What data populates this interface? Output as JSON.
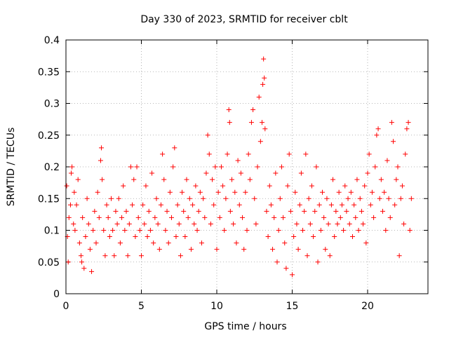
{
  "chart_data": {
    "type": "scatter",
    "title": "Day 330 of 2023, SRMTID for receiver cblt",
    "xlabel": "GPS time / hours",
    "ylabel": "SRMTID / TECUs",
    "xlim": [
      0,
      24
    ],
    "ylim": [
      0,
      0.4
    ],
    "x_ticks": [
      0,
      5,
      10,
      15,
      20
    ],
    "x_tick_labels": [
      "0",
      "5",
      "10",
      "15",
      "20"
    ],
    "y_ticks": [
      0,
      0.05,
      0.1,
      0.15,
      0.2,
      0.25,
      0.3,
      0.35,
      0.4
    ],
    "y_tick_labels": [
      "0",
      "0.05",
      "0.1",
      "0.15",
      "0.2",
      "0.25",
      "0.3",
      "0.35",
      "0.4"
    ],
    "grid": true,
    "marker": "+",
    "color": "#ff0000",
    "series": [
      {
        "name": "SRMTID",
        "points": [
          [
            0.05,
            0.17
          ],
          [
            0.1,
            0.09
          ],
          [
            0.15,
            0.05
          ],
          [
            0.2,
            0.12
          ],
          [
            0.3,
            0.14
          ],
          [
            0.35,
            0.19
          ],
          [
            0.4,
            0.2
          ],
          [
            0.5,
            0.11
          ],
          [
            0.55,
            0.16
          ],
          [
            0.6,
            0.1
          ],
          [
            0.7,
            0.14
          ],
          [
            0.8,
            0.18
          ],
          [
            0.9,
            0.08
          ],
          [
            1.0,
            0.06
          ],
          [
            1.05,
            0.05
          ],
          [
            1.1,
            0.12
          ],
          [
            1.2,
            0.04
          ],
          [
            1.3,
            0.09
          ],
          [
            1.4,
            0.15
          ],
          [
            1.5,
            0.11
          ],
          [
            1.6,
            0.07
          ],
          [
            1.7,
            0.035
          ],
          [
            1.8,
            0.1
          ],
          [
            1.9,
            0.13
          ],
          [
            2.0,
            0.08
          ],
          [
            2.1,
            0.16
          ],
          [
            2.2,
            0.12
          ],
          [
            2.3,
            0.21
          ],
          [
            2.35,
            0.23
          ],
          [
            2.4,
            0.18
          ],
          [
            2.5,
            0.1
          ],
          [
            2.6,
            0.06
          ],
          [
            2.7,
            0.14
          ],
          [
            2.8,
            0.12
          ],
          [
            2.9,
            0.09
          ],
          [
            3.0,
            0.15
          ],
          [
            3.1,
            0.1
          ],
          [
            3.2,
            0.06
          ],
          [
            3.3,
            0.13
          ],
          [
            3.4,
            0.11
          ],
          [
            3.5,
            0.15
          ],
          [
            3.6,
            0.08
          ],
          [
            3.7,
            0.12
          ],
          [
            3.8,
            0.17
          ],
          [
            3.9,
            0.1
          ],
          [
            4.0,
            0.13
          ],
          [
            4.1,
            0.06
          ],
          [
            4.2,
            0.11
          ],
          [
            4.3,
            0.2
          ],
          [
            4.4,
            0.14
          ],
          [
            4.5,
            0.18
          ],
          [
            4.6,
            0.09
          ],
          [
            4.7,
            0.2
          ],
          [
            4.8,
            0.12
          ],
          [
            4.9,
            0.1
          ],
          [
            5.0,
            0.06
          ],
          [
            5.1,
            0.14
          ],
          [
            5.2,
            0.11
          ],
          [
            5.3,
            0.17
          ],
          [
            5.4,
            0.09
          ],
          [
            5.5,
            0.13
          ],
          [
            5.6,
            0.1
          ],
          [
            5.7,
            0.19
          ],
          [
            5.8,
            0.08
          ],
          [
            5.9,
            0.12
          ],
          [
            6.0,
            0.15
          ],
          [
            6.1,
            0.11
          ],
          [
            6.2,
            0.07
          ],
          [
            6.3,
            0.14
          ],
          [
            6.4,
            0.22
          ],
          [
            6.5,
            0.18
          ],
          [
            6.6,
            0.1
          ],
          [
            6.7,
            0.13
          ],
          [
            6.8,
            0.08
          ],
          [
            6.9,
            0.16
          ],
          [
            7.0,
            0.12
          ],
          [
            7.1,
            0.2
          ],
          [
            7.2,
            0.23
          ],
          [
            7.3,
            0.09
          ],
          [
            7.4,
            0.14
          ],
          [
            7.5,
            0.11
          ],
          [
            7.6,
            0.06
          ],
          [
            7.7,
            0.16
          ],
          [
            7.8,
            0.13
          ],
          [
            7.9,
            0.09
          ],
          [
            8.0,
            0.18
          ],
          [
            8.1,
            0.12
          ],
          [
            8.2,
            0.15
          ],
          [
            8.3,
            0.07
          ],
          [
            8.4,
            0.14
          ],
          [
            8.5,
            0.11
          ],
          [
            8.6,
            0.17
          ],
          [
            8.7,
            0.1
          ],
          [
            8.8,
            0.13
          ],
          [
            8.9,
            0.16
          ],
          [
            9.0,
            0.08
          ],
          [
            9.1,
            0.15
          ],
          [
            9.2,
            0.12
          ],
          [
            9.3,
            0.19
          ],
          [
            9.4,
            0.25
          ],
          [
            9.5,
            0.22
          ],
          [
            9.6,
            0.11
          ],
          [
            9.7,
            0.18
          ],
          [
            9.8,
            0.14
          ],
          [
            9.9,
            0.2
          ],
          [
            10.0,
            0.07
          ],
          [
            10.1,
            0.16
          ],
          [
            10.2,
            0.12
          ],
          [
            10.3,
            0.2
          ],
          [
            10.4,
            0.17
          ],
          [
            10.5,
            0.1
          ],
          [
            10.6,
            0.15
          ],
          [
            10.7,
            0.22
          ],
          [
            10.8,
            0.29
          ],
          [
            10.85,
            0.27
          ],
          [
            10.9,
            0.13
          ],
          [
            11.0,
            0.18
          ],
          [
            11.1,
            0.11
          ],
          [
            11.2,
            0.16
          ],
          [
            11.3,
            0.08
          ],
          [
            11.4,
            0.21
          ],
          [
            11.5,
            0.14
          ],
          [
            11.6,
            0.19
          ],
          [
            11.7,
            0.12
          ],
          [
            11.8,
            0.07
          ],
          [
            11.9,
            0.16
          ],
          [
            12.0,
            0.1
          ],
          [
            12.1,
            0.22
          ],
          [
            12.2,
            0.18
          ],
          [
            12.3,
            0.27
          ],
          [
            12.4,
            0.29
          ],
          [
            12.5,
            0.15
          ],
          [
            12.6,
            0.11
          ],
          [
            12.7,
            0.2
          ],
          [
            12.8,
            0.31
          ],
          [
            12.9,
            0.24
          ],
          [
            13.0,
            0.27
          ],
          [
            13.05,
            0.33
          ],
          [
            13.1,
            0.37
          ],
          [
            13.15,
            0.34
          ],
          [
            13.2,
            0.26
          ],
          [
            13.3,
            0.13
          ],
          [
            13.4,
            0.09
          ],
          [
            13.5,
            0.17
          ],
          [
            13.6,
            0.14
          ],
          [
            13.7,
            0.07
          ],
          [
            13.8,
            0.12
          ],
          [
            13.9,
            0.19
          ],
          [
            14.0,
            0.05
          ],
          [
            14.1,
            0.1
          ],
          [
            14.2,
            0.15
          ],
          [
            14.3,
            0.2
          ],
          [
            14.4,
            0.12
          ],
          [
            14.5,
            0.08
          ],
          [
            14.6,
            0.04
          ],
          [
            14.7,
            0.17
          ],
          [
            14.8,
            0.22
          ],
          [
            14.9,
            0.13
          ],
          [
            15.0,
            0.03
          ],
          [
            15.1,
            0.09
          ],
          [
            15.2,
            0.16
          ],
          [
            15.3,
            0.11
          ],
          [
            15.4,
            0.07
          ],
          [
            15.5,
            0.14
          ],
          [
            15.6,
            0.19
          ],
          [
            15.7,
            0.1
          ],
          [
            15.8,
            0.13
          ],
          [
            15.9,
            0.22
          ],
          [
            16.0,
            0.06
          ],
          [
            16.1,
            0.15
          ],
          [
            16.2,
            0.11
          ],
          [
            16.3,
            0.17
          ],
          [
            16.4,
            0.09
          ],
          [
            16.5,
            0.13
          ],
          [
            16.6,
            0.2
          ],
          [
            16.7,
            0.05
          ],
          [
            16.8,
            0.14
          ],
          [
            16.9,
            0.1
          ],
          [
            17.0,
            0.16
          ],
          [
            17.1,
            0.12
          ],
          [
            17.2,
            0.07
          ],
          [
            17.3,
            0.15
          ],
          [
            17.4,
            0.11
          ],
          [
            17.5,
            0.06
          ],
          [
            17.6,
            0.14
          ],
          [
            17.7,
            0.18
          ],
          [
            17.8,
            0.09
          ],
          [
            17.9,
            0.13
          ],
          [
            18.0,
            0.11
          ],
          [
            18.1,
            0.16
          ],
          [
            18.2,
            0.12
          ],
          [
            18.3,
            0.14
          ],
          [
            18.4,
            0.1
          ],
          [
            18.5,
            0.17
          ],
          [
            18.6,
            0.13
          ],
          [
            18.7,
            0.15
          ],
          [
            18.8,
            0.11
          ],
          [
            18.9,
            0.16
          ],
          [
            19.0,
            0.09
          ],
          [
            19.1,
            0.14
          ],
          [
            19.2,
            0.12
          ],
          [
            19.3,
            0.18
          ],
          [
            19.4,
            0.1
          ],
          [
            19.5,
            0.15
          ],
          [
            19.6,
            0.13
          ],
          [
            19.7,
            0.11
          ],
          [
            19.8,
            0.17
          ],
          [
            19.9,
            0.08
          ],
          [
            20.0,
            0.19
          ],
          [
            20.1,
            0.22
          ],
          [
            20.2,
            0.14
          ],
          [
            20.3,
            0.16
          ],
          [
            20.4,
            0.12
          ],
          [
            20.5,
            0.2
          ],
          [
            20.6,
            0.25
          ],
          [
            20.7,
            0.26
          ],
          [
            20.8,
            0.15
          ],
          [
            20.9,
            0.18
          ],
          [
            21.0,
            0.13
          ],
          [
            21.1,
            0.16
          ],
          [
            21.2,
            0.1
          ],
          [
            21.3,
            0.21
          ],
          [
            21.4,
            0.15
          ],
          [
            21.5,
            0.12
          ],
          [
            21.6,
            0.27
          ],
          [
            21.7,
            0.24
          ],
          [
            21.8,
            0.14
          ],
          [
            21.9,
            0.18
          ],
          [
            22.0,
            0.2
          ],
          [
            22.1,
            0.06
          ],
          [
            22.2,
            0.15
          ],
          [
            22.3,
            0.17
          ],
          [
            22.4,
            0.11
          ],
          [
            22.5,
            0.22
          ],
          [
            22.6,
            0.26
          ],
          [
            22.7,
            0.27
          ],
          [
            22.8,
            0.1
          ],
          [
            22.9,
            0.15
          ]
        ]
      }
    ]
  }
}
